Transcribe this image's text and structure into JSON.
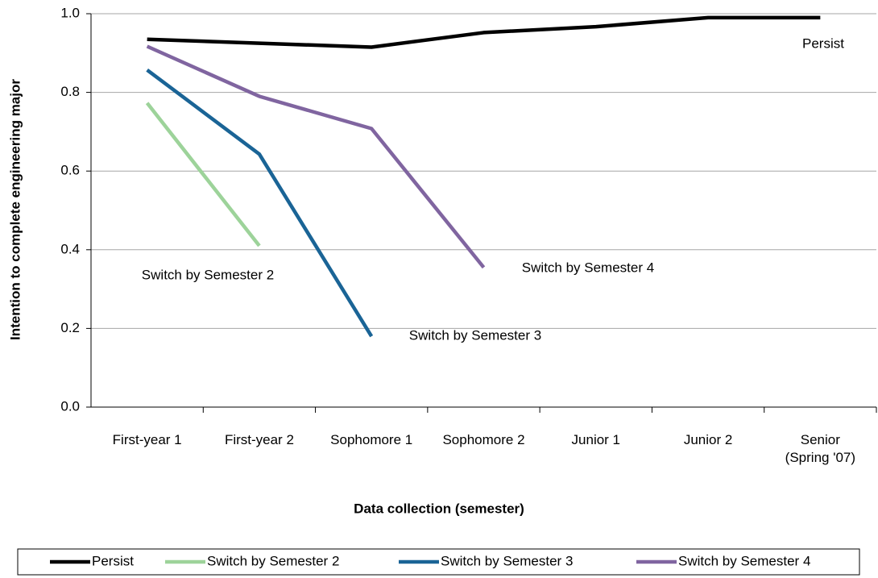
{
  "chart_data": {
    "type": "line",
    "y_label": "Intention to complete engineering major",
    "x_label": "Data collection (semester)",
    "categories": [
      "First-year 1",
      "First-year 2",
      "Sophomore 1",
      "Sophomore 2",
      "Junior 1",
      "Junior 2",
      "Senior\n(Spring '07)"
    ],
    "series": [
      {
        "name": "Persist",
        "color": "#000000",
        "values": [
          0.935,
          0.925,
          0.915,
          0.952,
          0.967,
          0.99,
          0.99
        ]
      },
      {
        "name": "Switch by Semester 2",
        "color": "#9dd39a",
        "values": [
          0.773,
          0.41,
          null,
          null,
          null,
          null,
          null
        ]
      },
      {
        "name": "Switch by Semester 3",
        "color": "#1a6496",
        "values": [
          0.857,
          0.643,
          0.18,
          null,
          null,
          null,
          null
        ]
      },
      {
        "name": "Switch by Semester 4",
        "color": "#8065a0",
        "values": [
          0.917,
          0.79,
          0.708,
          0.355,
          null,
          null,
          null
        ]
      }
    ],
    "annotations": [
      "Persist",
      "Switch by Semester 2",
      "Switch by Semester 3",
      "Switch by Semester 4"
    ],
    "ylim": [
      0,
      1
    ],
    "yticks": [
      {
        "value": 0,
        "label": "0.0"
      },
      {
        "value": 0.2,
        "label": "0.2"
      },
      {
        "value": 0.4,
        "label": "0.4"
      },
      {
        "value": 0.6,
        "label": "0.6"
      },
      {
        "value": 0.8,
        "label": "0.8"
      },
      {
        "value": 1,
        "label": "1.0"
      }
    ],
    "grid": true,
    "legend": "bottom"
  }
}
